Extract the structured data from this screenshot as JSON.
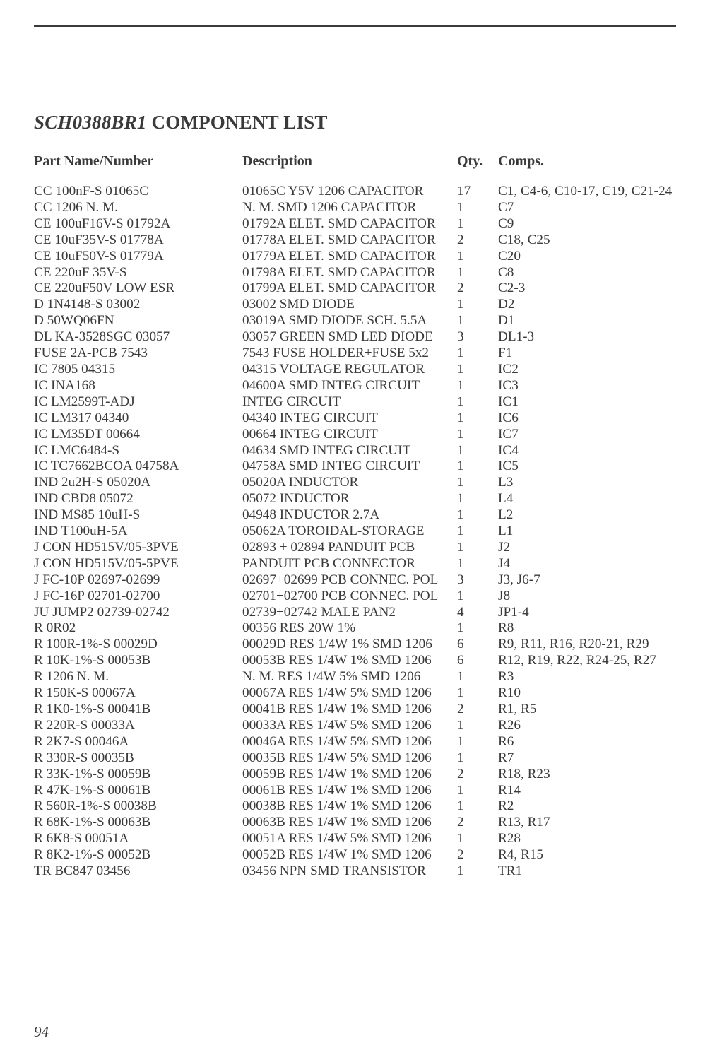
{
  "title_prefix": "SCH0388BR1",
  "title_suffix": " COMPONENT LIST",
  "headers": {
    "part": "Part Name/Number",
    "desc": "Description",
    "qty": "Qty.",
    "comp": "Comps."
  },
  "rows": [
    {
      "part": "CC 100nF-S 01065C",
      "desc": "01065C Y5V 1206 CAPACITOR",
      "qty": "17",
      "comp": "C1, C4-6, C10-17, C19, C21-24"
    },
    {
      "part": "CC 1206 N. M.",
      "desc": "N. M. SMD 1206 CAPACITOR",
      "qty": "1",
      "comp": "C7"
    },
    {
      "part": "CE 100uF16V-S 01792A",
      "desc": "01792A ELET. SMD CAPACITOR",
      "qty": "1",
      "comp": "C9"
    },
    {
      "part": "CE 10uF35V-S 01778A",
      "desc": "01778A ELET. SMD CAPACITOR",
      "qty": "2",
      "comp": "C18, C25"
    },
    {
      "part": "CE 10uF50V-S 01779A",
      "desc": "01779A ELET. SMD CAPACITOR",
      "qty": "1",
      "comp": "C20"
    },
    {
      "part": "CE 220uF 35V-S",
      "desc": "01798A ELET. SMD CAPACITOR",
      "qty": "1",
      "comp": "C8"
    },
    {
      "part": "CE 220uF50V LOW ESR",
      "desc": "01799A ELET. SMD CAPACITOR",
      "qty": "2",
      "comp": "C2-3"
    },
    {
      "part": "D 1N4148-S 03002",
      "desc": "03002 SMD DIODE",
      "qty": "1",
      "comp": "D2"
    },
    {
      "part": "D 50WQ06FN",
      "desc": "03019A SMD DIODE SCH. 5.5A",
      "qty": "1",
      "comp": "D1"
    },
    {
      "part": "DL KA-3528SGC 03057",
      "desc": "03057 GREEN SMD LED DIODE",
      "qty": "3",
      "comp": "DL1-3"
    },
    {
      "part": "FUSE 2A-PCB 7543",
      "desc": "7543 FUSE HOLDER+FUSE 5x2",
      "qty": "1",
      "comp": "F1"
    },
    {
      "part": "IC 7805 04315",
      "desc": "04315 VOLTAGE REGULATOR",
      "qty": "1",
      "comp": "IC2"
    },
    {
      "part": "IC INA168",
      "desc": "04600A SMD INTEG CIRCUIT",
      "qty": "1",
      "comp": "IC3"
    },
    {
      "part": "IC LM2599T-ADJ",
      "desc": "INTEG CIRCUIT",
      "qty": "1",
      "comp": "IC1"
    },
    {
      "part": "IC LM317 04340",
      "desc": "04340 INTEG CIRCUIT",
      "qty": "1",
      "comp": "IC6"
    },
    {
      "part": "IC LM35DT 00664",
      "desc": "00664 INTEG CIRCUIT",
      "qty": "1",
      "comp": "IC7"
    },
    {
      "part": "IC LMC6484-S",
      "desc": "04634 SMD INTEG CIRCUIT",
      "qty": "1",
      "comp": "IC4"
    },
    {
      "part": "IC TC7662BCOA 04758A",
      "desc": "04758A SMD INTEG CIRCUIT",
      "qty": "1",
      "comp": "IC5"
    },
    {
      "part": "IND 2u2H-S 05020A",
      "desc": "05020A INDUCTOR",
      "qty": "1",
      "comp": "L3"
    },
    {
      "part": "IND CBD8 05072",
      "desc": "05072 INDUCTOR",
      "qty": "1",
      "comp": "L4"
    },
    {
      "part": "IND MS85 10uH-S",
      "desc": "04948 INDUCTOR 2.7A",
      "qty": "1",
      "comp": "L2"
    },
    {
      "part": "IND T100uH-5A",
      "desc": "05062A TOROIDAL-STORAGE",
      "qty": "1",
      "comp": "L1"
    },
    {
      "part": "J CON HD515V/05-3PVE",
      "desc": "02893 + 02894 PANDUIT PCB",
      "qty": "1",
      "comp": "J2"
    },
    {
      "part": "J CON HD515V/05-5PVE",
      "desc": "PANDUIT PCB CONNECTOR",
      "qty": "1",
      "comp": "J4"
    },
    {
      "part": "J FC-10P 02697-02699",
      "desc": "02697+02699 PCB CONNEC. POL",
      "qty": "3",
      "comp": "J3, J6-7"
    },
    {
      "part": "J FC-16P 02701-02700",
      "desc": "02701+02700 PCB CONNEC. POL",
      "qty": "1",
      "comp": "J8"
    },
    {
      "part": "JU JUMP2 02739-02742",
      "desc": "02739+02742 MALE PAN2",
      "qty": "4",
      "comp": "JP1-4"
    },
    {
      "part": "R 0R02",
      "desc": "00356 RES 20W 1%",
      "qty": "1",
      "comp": "R8"
    },
    {
      "part": "R 100R-1%-S 00029D",
      "desc": "00029D RES 1/4W 1% SMD 1206",
      "qty": "6",
      "comp": "R9, R11, R16, R20-21, R29"
    },
    {
      "part": "R 10K-1%-S 00053B",
      "desc": "00053B RES 1/4W 1% SMD 1206",
      "qty": "6",
      "comp": "R12, R19, R22, R24-25, R27"
    },
    {
      "part": "R 1206 N. M.",
      "desc": "N. M. RES 1/4W 5% SMD 1206",
      "qty": "1",
      "comp": "R3"
    },
    {
      "part": "R 150K-S 00067A",
      "desc": "00067A RES 1/4W 5% SMD 1206",
      "qty": "1",
      "comp": "R10"
    },
    {
      "part": "R 1K0-1%-S 00041B",
      "desc": "00041B RES 1/4W 1% SMD 1206",
      "qty": "2",
      "comp": "R1, R5"
    },
    {
      "part": "R 220R-S 00033A",
      "desc": "00033A RES 1/4W 5% SMD 1206",
      "qty": "1",
      "comp": "R26"
    },
    {
      "part": "R 2K7-S 00046A",
      "desc": "00046A RES 1/4W 5% SMD 1206",
      "qty": "1",
      "comp": "R6"
    },
    {
      "part": "R 330R-S 00035B",
      "desc": "00035B RES 1/4W 5% SMD 1206",
      "qty": "1",
      "comp": "R7"
    },
    {
      "part": "R 33K-1%-S 00059B",
      "desc": "00059B RES 1/4W 1% SMD 1206",
      "qty": "2",
      "comp": "R18, R23"
    },
    {
      "part": "R 47K-1%-S 00061B",
      "desc": "00061B RES 1/4W 1% SMD 1206",
      "qty": "1",
      "comp": "R14"
    },
    {
      "part": "R 560R-1%-S 00038B",
      "desc": "00038B RES 1/4W 1% SMD 1206",
      "qty": "1",
      "comp": "R2"
    },
    {
      "part": "R 68K-1%-S 00063B",
      "desc": "00063B RES 1/4W 1% SMD 1206",
      "qty": "2",
      "comp": "R13, R17"
    },
    {
      "part": "R 6K8-S 00051A",
      "desc": "00051A RES 1/4W 5% SMD 1206",
      "qty": "1",
      "comp": "R28"
    },
    {
      "part": "R 8K2-1%-S 00052B",
      "desc": "00052B RES 1/4W 1% SMD 1206",
      "qty": "2",
      "comp": "R4, R15"
    },
    {
      "part": "TR BC847 03456",
      "desc": "03456 NPN SMD TRANSISTOR",
      "qty": "1",
      "comp": "TR1"
    }
  ],
  "page_number": "94",
  "colors": {
    "text": "#3a3a3a",
    "background": "#ffffff",
    "rule": "#3a3a3a"
  }
}
